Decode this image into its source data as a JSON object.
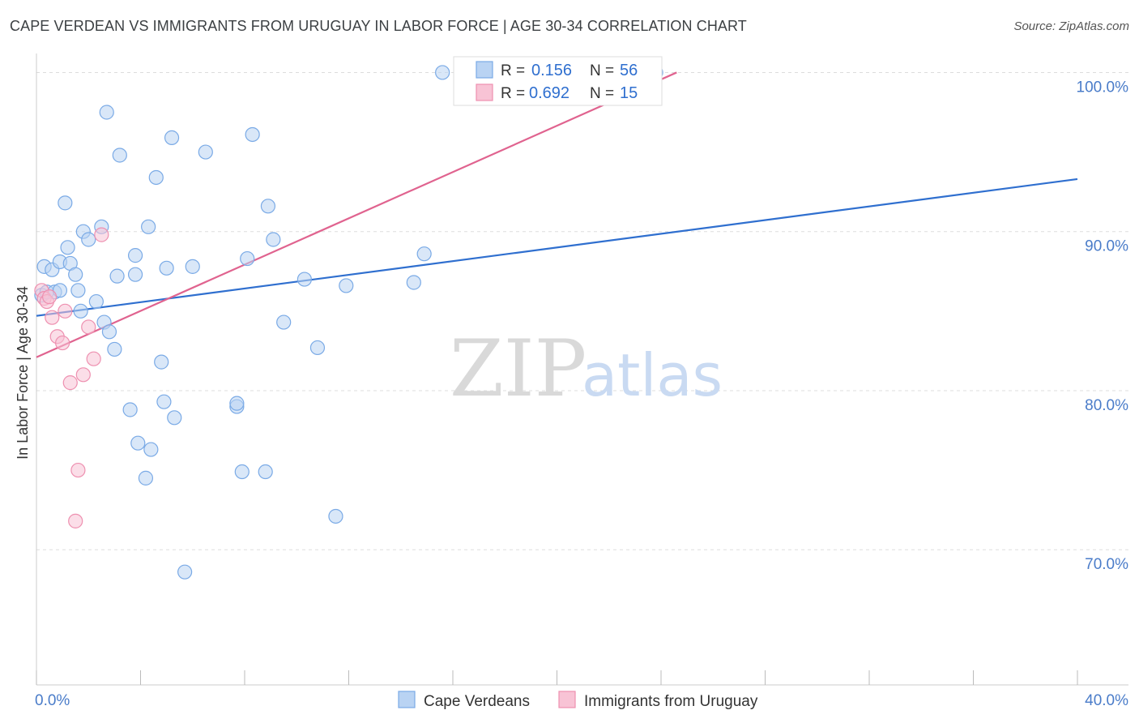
{
  "header": {
    "title": "CAPE VERDEAN VS IMMIGRANTS FROM URUGUAY IN LABOR FORCE | AGE 30-34 CORRELATION CHART",
    "source": "Source: ZipAtlas.com"
  },
  "watermark": {
    "zip": "ZIP",
    "atlas": "atlas"
  },
  "colors": {
    "blue_fill": "#b9d3f3",
    "blue_stroke": "#7aaae6",
    "blue_line": "#2f6fcf",
    "pink_fill": "#f8c3d5",
    "pink_stroke": "#ee90b0",
    "pink_line": "#e0638f",
    "grid": "#dddddd",
    "axis_label": "#4a7cc9"
  },
  "legend_box": {
    "r_label": "R =",
    "n_label": "N =",
    "rows": [
      {
        "r": "0.156",
        "n": "56"
      },
      {
        "r": "0.692",
        "n": "15"
      }
    ]
  },
  "chart_data": {
    "type": "scatter",
    "title": "CAPE VERDEAN VS IMMIGRANTS FROM URUGUAY IN LABOR FORCE | AGE 30-34 CORRELATION CHART",
    "xlabel": "",
    "ylabel": "In Labor Force | Age 30-34",
    "xlim": [
      0,
      40
    ],
    "ylim": [
      61.5,
      101.5
    ],
    "x_tick_labels": [
      {
        "value": 0,
        "label": "0.0%"
      },
      {
        "value": 40,
        "label": "40.0%"
      }
    ],
    "y_ticks": [
      {
        "value": 70,
        "label": "70.0%"
      },
      {
        "value": 80,
        "label": "80.0%"
      },
      {
        "value": 90,
        "label": "90.0%"
      },
      {
        "value": 100,
        "label": "100.0%"
      }
    ],
    "series": [
      {
        "name": "Cape Verdeans",
        "color": "blue",
        "R": 0.156,
        "N": 56,
        "trend": {
          "x": [
            0,
            40
          ],
          "y": [
            84.7,
            93.3
          ]
        },
        "points": [
          [
            0.2,
            86.0
          ],
          [
            0.3,
            87.8
          ],
          [
            0.4,
            86.2
          ],
          [
            0.6,
            87.6
          ],
          [
            0.7,
            86.2
          ],
          [
            0.9,
            88.1
          ],
          [
            0.9,
            86.3
          ],
          [
            1.1,
            91.8
          ],
          [
            1.2,
            89.0
          ],
          [
            1.3,
            88.0
          ],
          [
            1.5,
            87.3
          ],
          [
            1.6,
            86.3
          ],
          [
            1.7,
            85.0
          ],
          [
            1.8,
            90.0
          ],
          [
            2.0,
            89.5
          ],
          [
            2.3,
            85.6
          ],
          [
            2.5,
            90.3
          ],
          [
            2.6,
            84.3
          ],
          [
            2.8,
            83.7
          ],
          [
            2.7,
            97.5
          ],
          [
            3.0,
            82.6
          ],
          [
            3.1,
            87.2
          ],
          [
            3.2,
            94.8
          ],
          [
            3.6,
            78.8
          ],
          [
            3.8,
            87.3
          ],
          [
            3.8,
            88.5
          ],
          [
            3.9,
            76.7
          ],
          [
            4.2,
            74.5
          ],
          [
            4.3,
            90.3
          ],
          [
            4.4,
            76.3
          ],
          [
            4.6,
            93.4
          ],
          [
            4.8,
            81.8
          ],
          [
            4.9,
            79.3
          ],
          [
            5.0,
            87.7
          ],
          [
            5.3,
            78.3
          ],
          [
            5.2,
            95.9
          ],
          [
            5.7,
            68.6
          ],
          [
            6.0,
            87.8
          ],
          [
            6.5,
            95.0
          ],
          [
            7.7,
            79.0
          ],
          [
            7.7,
            79.2
          ],
          [
            7.9,
            74.9
          ],
          [
            8.1,
            88.3
          ],
          [
            8.3,
            96.1
          ],
          [
            8.8,
            74.9
          ],
          [
            8.9,
            91.6
          ],
          [
            9.1,
            89.5
          ],
          [
            9.5,
            84.3
          ],
          [
            10.3,
            87.0
          ],
          [
            10.8,
            82.7
          ],
          [
            11.5,
            72.1
          ],
          [
            11.9,
            86.6
          ],
          [
            14.5,
            86.8
          ],
          [
            14.9,
            88.6
          ],
          [
            15.6,
            100.0
          ],
          [
            23.8,
            100.0
          ]
        ]
      },
      {
        "name": "Immigrants from Uruguay",
        "color": "pink",
        "R": 0.692,
        "N": 15,
        "trend": {
          "x": [
            0,
            24.6
          ],
          "y": [
            82.1,
            100.0
          ]
        },
        "points": [
          [
            0.2,
            86.3
          ],
          [
            0.3,
            85.8
          ],
          [
            0.4,
            85.6
          ],
          [
            0.5,
            85.9
          ],
          [
            0.6,
            84.6
          ],
          [
            0.8,
            83.4
          ],
          [
            1.0,
            83.0
          ],
          [
            1.1,
            85.0
          ],
          [
            1.3,
            80.5
          ],
          [
            1.8,
            81.0
          ],
          [
            2.0,
            84.0
          ],
          [
            2.2,
            82.0
          ],
          [
            1.6,
            75.0
          ],
          [
            1.5,
            71.8
          ],
          [
            2.5,
            89.8
          ]
        ]
      }
    ],
    "bottom_legend": [
      "Cape Verdeans",
      "Immigrants from Uruguay"
    ]
  }
}
